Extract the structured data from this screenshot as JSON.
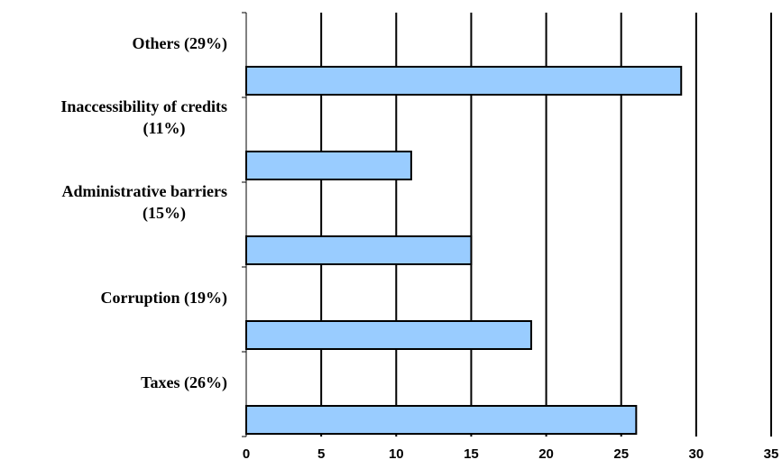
{
  "chart_data": {
    "type": "bar",
    "orientation": "horizontal",
    "categories": [
      [
        "Others (29%)"
      ],
      [
        "Inaccessibility of credits",
        "(11%)"
      ],
      [
        "Administrative barriers",
        "(15%)"
      ],
      [
        "Corruption (19%)"
      ],
      [
        "Taxes (26%)"
      ]
    ],
    "values": [
      29,
      11,
      15,
      19,
      26
    ],
    "xlim": [
      0,
      35
    ],
    "x_ticks": [
      0,
      5,
      10,
      15,
      20,
      25,
      30,
      35
    ],
    "grid": "vertical",
    "legend": "none",
    "title": "",
    "xlabel": "",
    "ylabel": "",
    "colors": {
      "bar_fill": "#99CCFF",
      "bar_stroke": "#000000",
      "grid": "#000000"
    }
  }
}
